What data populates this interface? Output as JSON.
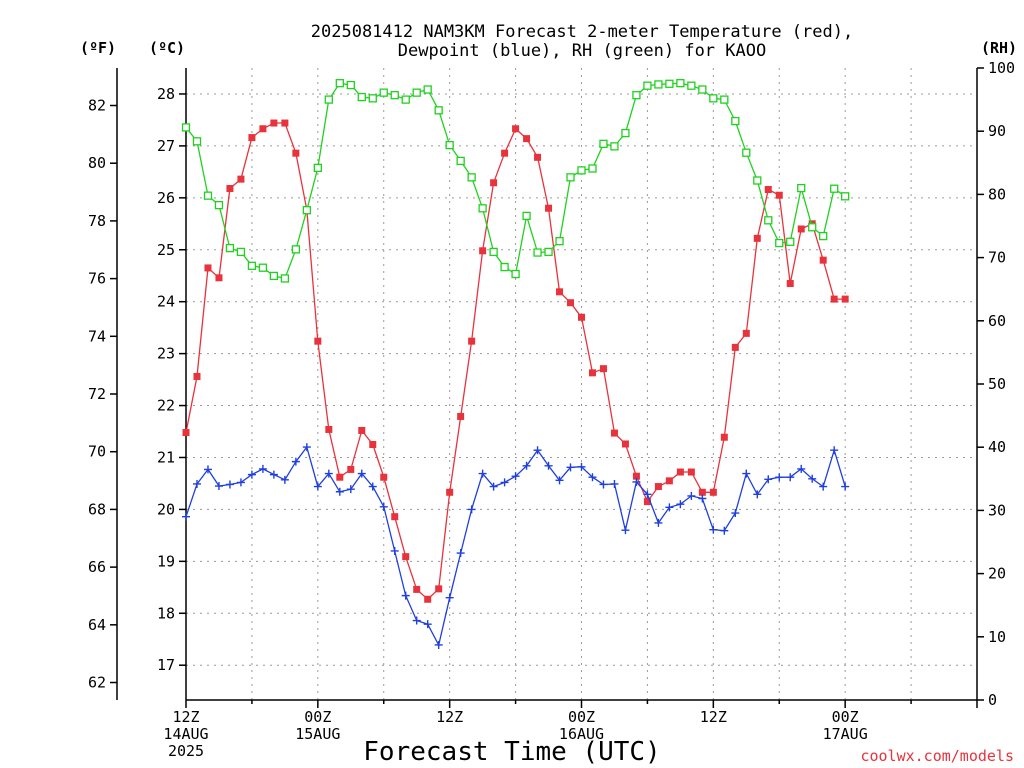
{
  "chart_data": {
    "type": "line",
    "title_line1": "2025081412 NAM3KM Forecast 2-meter Temperature (red),",
    "title_line2": "Dewpoint (blue), RH (green) for KAOO",
    "xlabel": "Forecast Time (UTC)",
    "credit": "coolwx.com/models",
    "left_outer_unit": "(ºF)",
    "left_inner_unit": "(ºC)",
    "right_unit": "(RH)",
    "xlim_hours": [
      0,
      36
    ],
    "x_ticks": [
      {
        "hour": 0,
        "line1": "12Z",
        "line2": "14AUG",
        "line3": "2025"
      },
      {
        "hour": 6,
        "line1": "00Z",
        "line2": "15AUG",
        "line3": ""
      },
      {
        "hour": 12,
        "line1": "12Z",
        "line2": "",
        "line3": ""
      },
      {
        "hour": 18,
        "line1": "00Z",
        "line2": "16AUG",
        "line3": ""
      },
      {
        "hour": 24,
        "line1": "12Z",
        "line2": "",
        "line3": ""
      },
      {
        "hour": 30,
        "line1": "00Z",
        "line2": "17AUG",
        "line3": ""
      }
    ],
    "celsius_axis": {
      "ylim": [
        16.33,
        28.5
      ],
      "ticks": [
        17,
        18,
        19,
        20,
        21,
        22,
        23,
        24,
        25,
        26,
        27,
        28
      ]
    },
    "fahrenheit_axis": {
      "ticks": [
        62,
        64,
        66,
        68,
        70,
        72,
        74,
        76,
        78,
        80,
        82
      ]
    },
    "rh_axis": {
      "ylim": [
        0,
        100
      ],
      "ticks": [
        0,
        10,
        20,
        30,
        40,
        50,
        60,
        70,
        80,
        90,
        100
      ]
    },
    "x_hours": [
      0,
      0.5,
      1,
      1.5,
      2,
      2.5,
      3,
      3.5,
      4,
      4.5,
      5,
      5.5,
      6,
      6.5,
      7,
      7.5,
      8,
      8.5,
      9,
      9.5,
      10,
      10.5,
      11,
      11.5,
      12,
      12.5,
      13,
      13.5,
      14,
      14.5,
      15,
      15.5,
      16,
      16.5,
      17,
      17.5,
      18,
      18.5,
      19,
      19.5,
      20,
      20.5,
      21,
      21.5,
      22,
      22.5,
      23,
      23.5,
      24,
      24.5,
      25,
      25.5,
      26,
      26.5,
      27,
      27.5,
      28,
      28.5,
      29,
      29.5,
      30
    ],
    "series": [
      {
        "key": "temperature",
        "unit": "C",
        "color": "#e8323c",
        "marker": "filled-square",
        "values": [
          21.48,
          22.56,
          24.65,
          24.46,
          26.18,
          26.36,
          27.16,
          27.33,
          27.44,
          27.44,
          26.86,
          25.77,
          23.24,
          21.54,
          20.62,
          20.77,
          21.52,
          21.25,
          20.62,
          19.86,
          19.09,
          18.46,
          18.27,
          18.47,
          20.33,
          21.79,
          23.24,
          24.98,
          26.29,
          26.86,
          27.33,
          27.14,
          26.78,
          25.8,
          24.19,
          23.98,
          23.7,
          22.63,
          22.71,
          21.47,
          21.26,
          20.64,
          20.15,
          20.44,
          20.55,
          20.72,
          20.72,
          20.33,
          20.33,
          21.39,
          23.12,
          23.39,
          25.22,
          26.16,
          26.05,
          24.35,
          25.4,
          25.5,
          24.8,
          24.05,
          24.05
        ]
      },
      {
        "key": "dewpoint",
        "unit": "C",
        "color": "#1f3fdf",
        "marker": "plus",
        "values": [
          19.86,
          20.49,
          20.77,
          20.45,
          20.48,
          20.52,
          20.67,
          20.78,
          20.67,
          20.57,
          20.92,
          21.2,
          20.44,
          20.69,
          20.34,
          20.39,
          20.69,
          20.44,
          20.05,
          19.2,
          18.34,
          17.86,
          17.79,
          17.39,
          18.3,
          19.16,
          20.0,
          20.69,
          20.44,
          20.52,
          20.64,
          20.84,
          21.14,
          20.84,
          20.56,
          20.81,
          20.82,
          20.62,
          20.48,
          20.49,
          19.6,
          20.53,
          20.29,
          19.74,
          20.04,
          20.1,
          20.26,
          20.21,
          19.61,
          19.59,
          19.93,
          20.69,
          20.29,
          20.58,
          20.62,
          20.62,
          20.78,
          20.59,
          20.44,
          21.14,
          20.44
        ]
      },
      {
        "key": "rh",
        "unit": "%",
        "color": "#1fd21f",
        "marker": "open-square",
        "values": [
          90.6,
          88.4,
          79.8,
          78.3,
          71.5,
          70.9,
          68.7,
          68.4,
          67.1,
          66.7,
          71.3,
          77.5,
          84.2,
          95.0,
          97.6,
          97.3,
          95.4,
          95.2,
          96.1,
          95.7,
          95.0,
          96.1,
          96.6,
          93.3,
          87.8,
          85.3,
          82.7,
          77.8,
          70.9,
          68.5,
          67.4,
          76.6,
          70.8,
          70.9,
          72.6,
          82.7,
          83.8,
          84.1,
          88.0,
          87.6,
          89.7,
          95.7,
          97.2,
          97.4,
          97.5,
          97.6,
          97.2,
          96.6,
          95.2,
          95.0,
          91.6,
          86.6,
          82.2,
          75.9,
          72.3,
          72.5,
          81.0,
          74.8,
          73.4,
          80.9,
          79.7
        ]
      }
    ]
  }
}
